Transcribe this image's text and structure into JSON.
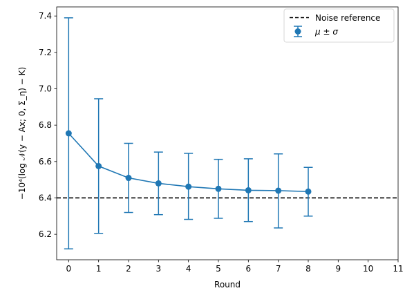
{
  "chart_data": {
    "type": "line",
    "title": "",
    "xlabel": "Round",
    "ylabel": "$-10^4(\\log\\mathcal{N}(y-Ax;0,\\Sigma_\\eta)-K)$",
    "ylabel_display": "−10⁴(log 𝒩(y − Ax; 0, Σ_η) − K)",
    "xlim": [
      -0.4,
      11
    ],
    "ylim": [
      6.06,
      7.45
    ],
    "xticks": [
      0,
      1,
      2,
      3,
      4,
      5,
      6,
      7,
      8,
      9,
      10,
      11
    ],
    "yticks": [
      6.2,
      6.4,
      6.6,
      6.8,
      7.0,
      7.2,
      7.4
    ],
    "grid": false,
    "legend_position": "top-right",
    "series": [
      {
        "name": "μ ± σ",
        "color": "#1f77b4",
        "x": [
          0,
          1,
          2,
          3,
          4,
          5,
          6,
          7,
          8
        ],
        "y": [
          6.755,
          6.575,
          6.51,
          6.48,
          6.462,
          6.45,
          6.442,
          6.44,
          6.435
        ],
        "yerr_low": [
          6.12,
          6.205,
          6.32,
          6.308,
          6.282,
          6.288,
          6.27,
          6.235,
          6.3
        ],
        "yerr_high": [
          7.39,
          6.945,
          6.7,
          6.652,
          6.645,
          6.612,
          6.615,
          6.642,
          6.568
        ]
      }
    ],
    "reference_line": {
      "name": "Noise reference",
      "y": 6.4,
      "color": "#000000",
      "style": "dashed"
    },
    "legend": [
      {
        "label": "Noise reference",
        "marker": "dashed-line"
      },
      {
        "label": "μ ± σ",
        "marker": "errorbar-point"
      }
    ]
  }
}
